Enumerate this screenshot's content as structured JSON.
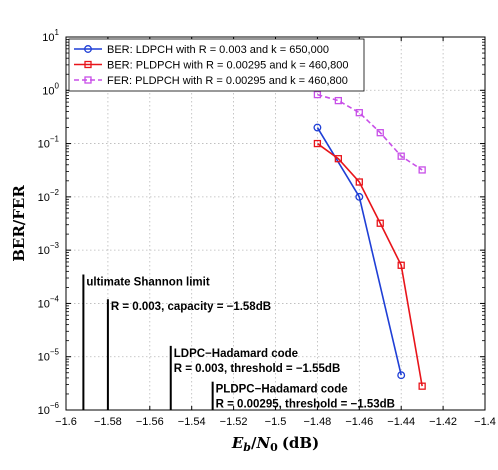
{
  "chart_data": {
    "type": "line",
    "title": "",
    "xlabel": "E_b/N_0 (dB)",
    "xlabel_parts": {
      "E": "E",
      "b": "b",
      "slash": "/",
      "N": "N",
      "zero": "0",
      "unit": "(dB)"
    },
    "ylabel": "BER/FER",
    "xlim": [
      -1.6,
      -1.4
    ],
    "ylim_log10": [
      -6,
      1
    ],
    "yscale": "log",
    "grid": true,
    "legend_position": "top-left",
    "x_ticks": [
      -1.6,
      -1.58,
      -1.56,
      -1.54,
      -1.52,
      -1.5,
      -1.48,
      -1.46,
      -1.44,
      -1.42,
      -1.4
    ],
    "x_tick_labels": [
      "−1.6",
      "−1.58",
      "−1.56",
      "−1.54",
      "−1.52",
      "−1.5",
      "−1.48",
      "−1.46",
      "−1.44",
      "−1.42",
      "−1.4"
    ],
    "y_tick_exponents": [
      -6,
      -5,
      -4,
      -3,
      -2,
      -1,
      0,
      1
    ],
    "y_tick_base": "10",
    "series": [
      {
        "name": "BER: LDPCH with R = 0.003 and k = 650,000",
        "color": "#1f3fd6",
        "line_style": "solid",
        "marker": "circle",
        "x": [
          -1.48,
          -1.46,
          -1.44
        ],
        "y": [
          0.2,
          0.01,
          4.5e-06
        ]
      },
      {
        "name": "BER: PLDPCH with R = 0.00295 and k = 460,800",
        "color": "#e8141a",
        "line_style": "solid",
        "marker": "square",
        "x": [
          -1.48,
          -1.47,
          -1.46,
          -1.45,
          -1.44,
          -1.43
        ],
        "y": [
          0.1,
          0.052,
          0.019,
          0.0032,
          0.00052,
          2.8e-06
        ]
      },
      {
        "name": "FER: PLDPCH with R = 0.00295 and k = 460,800",
        "color": "#c84fe8",
        "line_style": "dashed",
        "marker": "square",
        "x": [
          -1.48,
          -1.47,
          -1.46,
          -1.45,
          -1.44,
          -1.43
        ],
        "y": [
          0.83,
          0.64,
          0.38,
          0.16,
          0.058,
          0.032
        ]
      }
    ],
    "annotations": [
      {
        "lines": [
          "ultimate Shannon limit"
        ],
        "x": -1.5917,
        "y_top": 0.00035
      },
      {
        "lines": [
          "R = 0.003, capacity = −1.58dB"
        ],
        "x": -1.58,
        "y_top": 0.00012
      },
      {
        "lines": [
          "LDPC−Hadamard code",
          "R = 0.003, threshold = −1.55dB"
        ],
        "x": -1.55,
        "y_top": 1.6e-05
      },
      {
        "lines": [
          "PLDPC−Hadamard code",
          "R = 0.00295, threshold = −1.53dB"
        ],
        "x": -1.53,
        "y_top": 3.4e-06
      }
    ]
  }
}
